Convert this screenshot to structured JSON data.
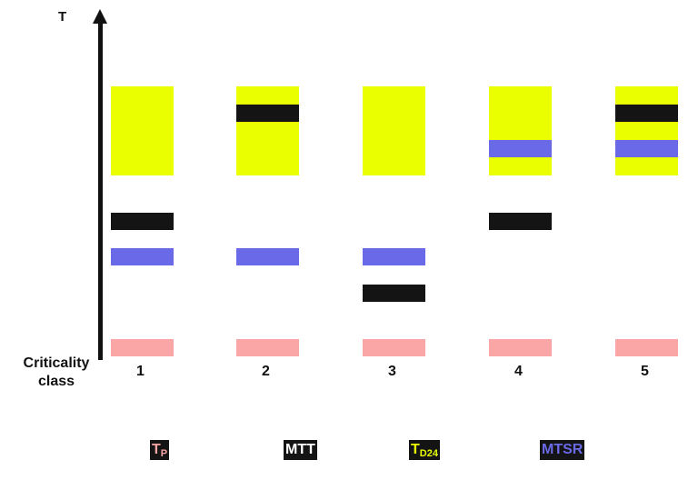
{
  "axis": {
    "y_label": "T",
    "x_label": "Criticality class"
  },
  "colors": {
    "TP": "#fba6a6",
    "MTT": "#141414",
    "TD24": "#eaff00",
    "MTSR": "#6a6ae8"
  },
  "chart_data": {
    "type": "diagram",
    "categories": [
      "1",
      "2",
      "3",
      "4",
      "5"
    ],
    "ylabel": "T",
    "xlabel": "Criticality class",
    "series": [
      {
        "name": "TP",
        "classes": [
          "1",
          "2",
          "3",
          "4",
          "5"
        ]
      },
      {
        "name": "MTT",
        "classes": [
          "1",
          "2",
          "3",
          "4",
          "5"
        ]
      },
      {
        "name": "TD24",
        "classes": [
          "1",
          "2",
          "3",
          "4",
          "5"
        ]
      },
      {
        "name": "MTSR",
        "classes": [
          "1",
          "2",
          "3",
          "4",
          "5"
        ]
      }
    ]
  },
  "legend": [
    {
      "main": "T",
      "sub": "P",
      "color": "#fba6a6"
    },
    {
      "main": "MTT",
      "sub": "",
      "color": "#ffffff"
    },
    {
      "main": "T",
      "sub": "D24",
      "color": "#eaff00"
    },
    {
      "main": "MTSR",
      "sub": "",
      "color": "#6a6ae8"
    }
  ]
}
